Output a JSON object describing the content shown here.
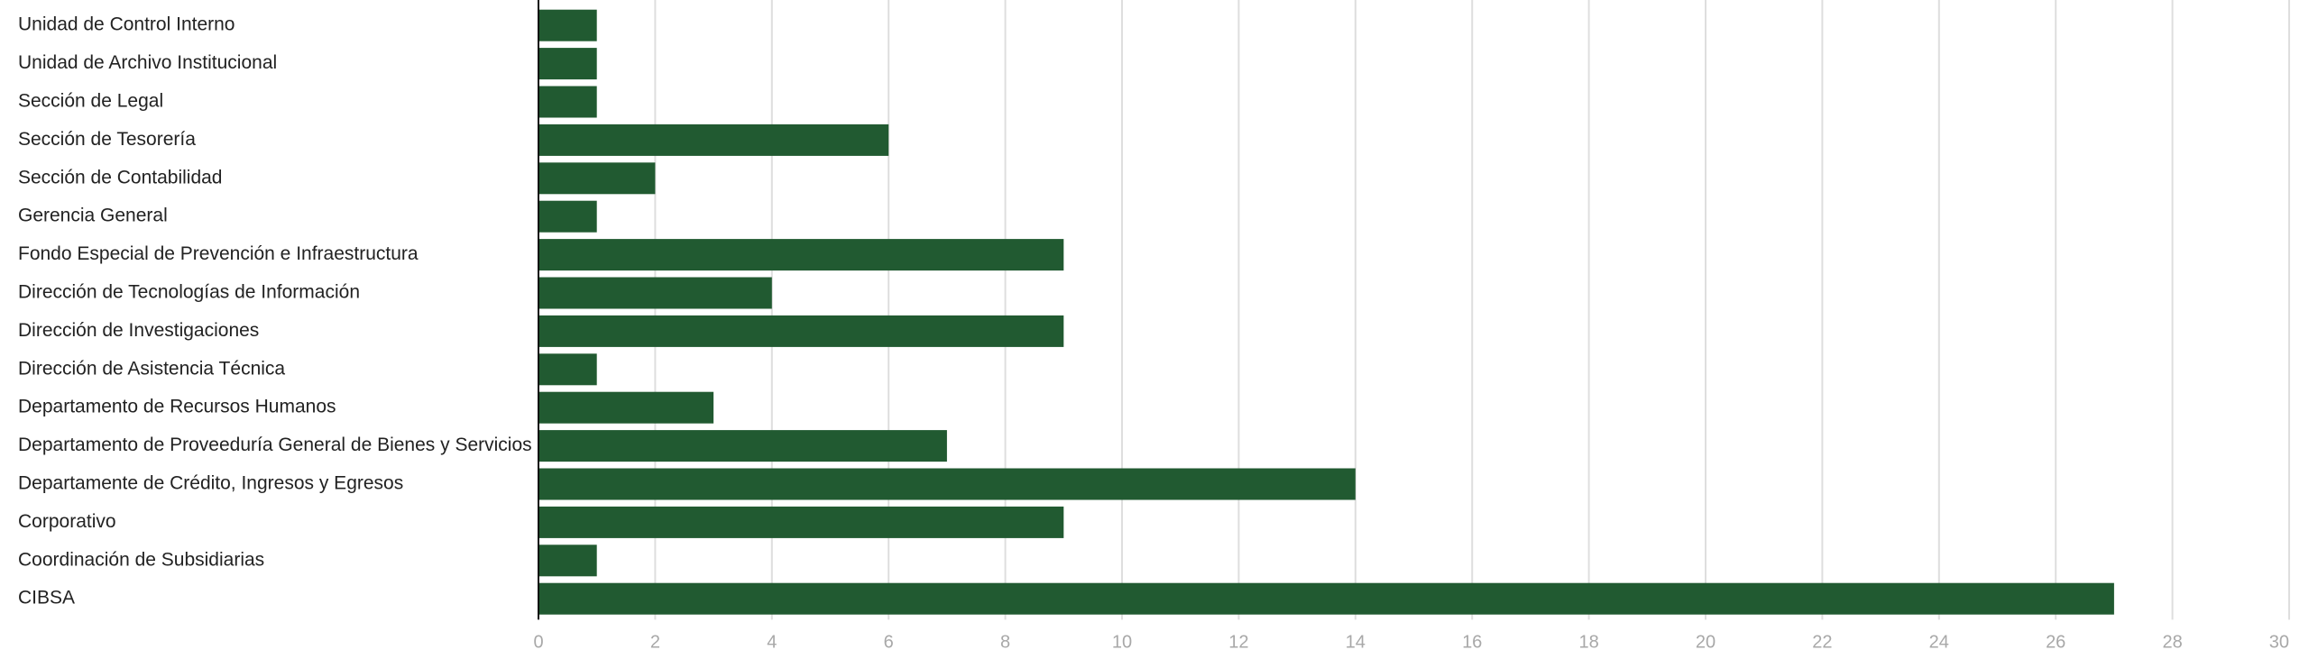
{
  "chart_data": {
    "type": "bar",
    "orientation": "horizontal",
    "categories": [
      "Unidad de Control Interno",
      "Unidad de Archivo Institucional",
      "Sección de Legal",
      "Sección de Tesorería",
      "Sección de Contabilidad",
      "Gerencia General",
      "Fondo Especial de Prevención e Infraestructura",
      "Dirección de Tecnologías de Información",
      "Dirección de Investigaciones",
      "Dirección de Asistencia Técnica",
      "Departamento de Recursos Humanos",
      "Departamento de Proveeduría General de Bienes y Servicios",
      "Departamente de Crédito, Ingresos y Egresos",
      "Corporativo",
      "Coordinación de Subsidiarias",
      "CIBSA"
    ],
    "values": [
      1,
      1,
      1,
      6,
      2,
      1,
      9,
      4,
      9,
      1,
      3,
      7,
      14,
      9,
      1,
      27
    ],
    "xlim": [
      0,
      30
    ],
    "xticks": [
      "0",
      "2",
      "4",
      "6",
      "8",
      "10",
      "12",
      "14",
      "16",
      "18",
      "20",
      "22",
      "24",
      "26",
      "28",
      "30"
    ],
    "grid": true,
    "bar_color": "#215a31",
    "grid_color": "#dedede",
    "tick_color": "#a8a8a8",
    "title": "",
    "xlabel": "",
    "ylabel": ""
  }
}
